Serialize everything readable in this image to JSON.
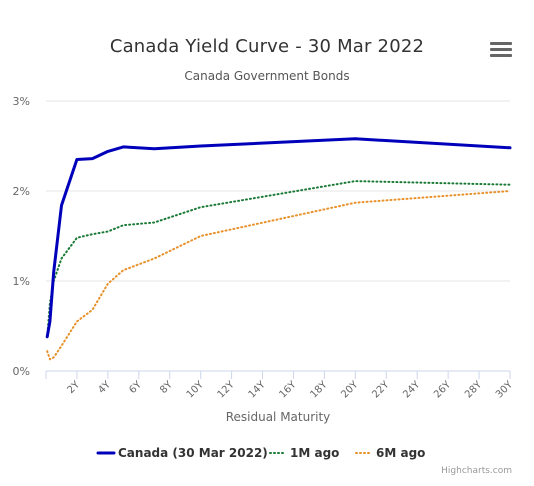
{
  "title": "Canada Yield Curve - 30 Mar 2022",
  "subtitle": "Canada Government Bonds",
  "menu_icon": "hamburger-menu-icon",
  "credits": "Highcharts.com",
  "chart_data": {
    "type": "line",
    "title": "Canada Yield Curve - 30 Mar 2022",
    "subtitle": "Canada Government Bonds",
    "xlabel": "Residual Maturity",
    "ylabel": "",
    "xlim": [
      0,
      30
    ],
    "ylim": [
      0,
      3
    ],
    "x_ticks": [
      "2Y",
      "4Y",
      "6Y",
      "8Y",
      "10Y",
      "12Y",
      "14Y",
      "16Y",
      "18Y",
      "20Y",
      "22Y",
      "24Y",
      "26Y",
      "28Y",
      "30Y"
    ],
    "y_ticks": [
      "0%",
      "1%",
      "2%",
      "3%"
    ],
    "grid": true,
    "legend_position": "bottom-center",
    "series": [
      {
        "name": "Canada (30 Mar 2022)",
        "color": "#0000bb",
        "style": "solid",
        "points": [
          [
            0.08,
            0.38
          ],
          [
            0.25,
            0.55
          ],
          [
            0.5,
            1.1
          ],
          [
            1,
            1.84
          ],
          [
            2,
            2.35
          ],
          [
            3,
            2.36
          ],
          [
            4,
            2.44
          ],
          [
            5,
            2.49
          ],
          [
            7,
            2.47
          ],
          [
            10,
            2.5
          ],
          [
            20,
            2.58
          ],
          [
            30,
            2.48
          ]
        ]
      },
      {
        "name": "1M ago",
        "color": "#1a7a35",
        "style": "dotted",
        "points": [
          [
            0.08,
            0.38
          ],
          [
            0.25,
            0.75
          ],
          [
            0.5,
            1.0
          ],
          [
            1,
            1.25
          ],
          [
            2,
            1.48
          ],
          [
            3,
            1.52
          ],
          [
            4,
            1.55
          ],
          [
            5,
            1.62
          ],
          [
            7,
            1.65
          ],
          [
            10,
            1.82
          ],
          [
            20,
            2.11
          ],
          [
            30,
            2.07
          ]
        ]
      },
      {
        "name": "6M ago",
        "color": "#e8902a",
        "style": "dotted",
        "points": [
          [
            0.08,
            0.22
          ],
          [
            0.25,
            0.13
          ],
          [
            0.5,
            0.15
          ],
          [
            1,
            0.28
          ],
          [
            2,
            0.55
          ],
          [
            3,
            0.68
          ],
          [
            4,
            0.97
          ],
          [
            5,
            1.12
          ],
          [
            7,
            1.25
          ],
          [
            10,
            1.5
          ],
          [
            20,
            1.87
          ],
          [
            30,
            2.0
          ]
        ]
      }
    ]
  }
}
